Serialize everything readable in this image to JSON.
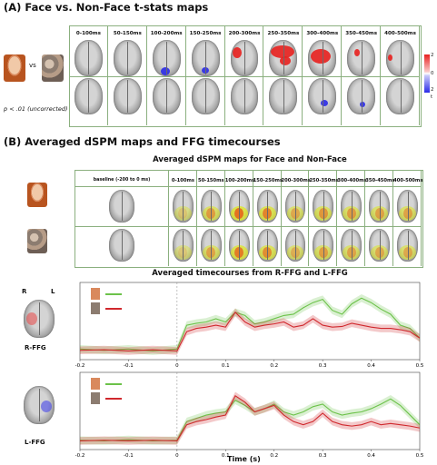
{
  "sectionA": {
    "title": "(A) Face vs. Non-Face t-stats maps",
    "vs": "vs",
    "threshold": "p < .01 (uncorrected)",
    "windows": [
      "0-100ms",
      "50-150ms",
      "100-200ms",
      "150-250ms",
      "200-300ms",
      "250-350ms",
      "300-400ms",
      "350-450ms",
      "400-500ms"
    ],
    "colorbar": {
      "max": "2",
      "mid": "0",
      "min": "2",
      "unit": "t"
    }
  },
  "sectionB": {
    "title": "(B) Averaged dSPM maps and FFG timecourses",
    "dspm_title": "Averaged dSPM maps for Face and Non-Face",
    "windows": [
      "baseline (-200 to 0 ms)",
      "0-100ms",
      "50-150ms",
      "100-200ms",
      "150-250ms",
      "200-300ms",
      "250-350ms",
      "300-400ms",
      "350-450ms",
      "400-500ms"
    ],
    "timecourse_title": "Averaged timecourses from R-FFG and L-FFG",
    "hemi_r": "R",
    "hemi_l": "L",
    "roi_r": "R-FFG",
    "roi_l": "L-FFG",
    "xlabel": "Time (s)"
  },
  "colors": {
    "face": "#6cc24a",
    "nonface": "#d0282d",
    "table_border": "#8bb07f",
    "pos": "#e8201e",
    "neg": "#2b2be8"
  },
  "chart_data": [
    {
      "type": "line",
      "title": "R-FFG",
      "xlabel": "",
      "xlim": [
        -0.2,
        0.5
      ],
      "x_ticks": [
        "-0.2",
        "-0.1",
        "0",
        "0.1",
        "0.2",
        "0.3",
        "0.4",
        "0.5"
      ],
      "x": [
        -0.2,
        -0.15,
        -0.1,
        -0.05,
        0,
        0.02,
        0.04,
        0.06,
        0.08,
        0.1,
        0.12,
        0.14,
        0.16,
        0.18,
        0.2,
        0.22,
        0.24,
        0.26,
        0.28,
        0.3,
        0.32,
        0.34,
        0.36,
        0.38,
        0.4,
        0.42,
        0.44,
        0.46,
        0.48,
        0.5
      ],
      "series": [
        {
          "values": [
            0.08,
            0.06,
            0.08,
            0.05,
            0.08,
            0.45,
            0.48,
            0.5,
            0.55,
            0.5,
            0.65,
            0.6,
            0.47,
            0.5,
            0.55,
            0.6,
            0.62,
            0.72,
            0.8,
            0.85,
            0.68,
            0.62,
            0.78,
            0.87,
            0.8,
            0.7,
            0.62,
            0.45,
            0.4,
            0.25
          ]
        },
        {
          "values": [
            0.06,
            0.07,
            0.05,
            0.07,
            0.05,
            0.35,
            0.4,
            0.42,
            0.45,
            0.42,
            0.65,
            0.5,
            0.42,
            0.45,
            0.47,
            0.5,
            0.42,
            0.45,
            0.55,
            0.45,
            0.42,
            0.43,
            0.48,
            0.45,
            0.42,
            0.4,
            0.4,
            0.38,
            0.35,
            0.25
          ]
        }
      ]
    },
    {
      "type": "line",
      "title": "L-FFG",
      "xlabel": "Time (s)",
      "xlim": [
        -0.2,
        0.5
      ],
      "x_ticks": [
        "-0.2",
        "-0.1",
        "0",
        "0.1",
        "0.2",
        "0.3",
        "0.4",
        "0.5"
      ],
      "x": [
        -0.2,
        -0.15,
        -0.1,
        -0.05,
        0,
        0.02,
        0.04,
        0.06,
        0.08,
        0.1,
        0.12,
        0.14,
        0.16,
        0.18,
        0.2,
        0.22,
        0.24,
        0.26,
        0.28,
        0.3,
        0.32,
        0.34,
        0.36,
        0.38,
        0.4,
        0.42,
        0.44,
        0.46,
        0.48,
        0.5
      ],
      "series": [
        {
          "values": [
            0.06,
            0.05,
            0.07,
            0.05,
            0.06,
            0.35,
            0.4,
            0.45,
            0.48,
            0.5,
            0.68,
            0.6,
            0.5,
            0.55,
            0.62,
            0.5,
            0.45,
            0.5,
            0.58,
            0.62,
            0.5,
            0.45,
            0.48,
            0.5,
            0.55,
            0.62,
            0.7,
            0.6,
            0.45,
            0.3
          ]
        },
        {
          "values": [
            0.05,
            0.06,
            0.05,
            0.06,
            0.05,
            0.3,
            0.35,
            0.38,
            0.42,
            0.45,
            0.75,
            0.65,
            0.5,
            0.55,
            0.6,
            0.45,
            0.35,
            0.3,
            0.35,
            0.48,
            0.35,
            0.3,
            0.28,
            0.3,
            0.35,
            0.3,
            0.32,
            0.3,
            0.28,
            0.25
          ]
        }
      ]
    }
  ]
}
